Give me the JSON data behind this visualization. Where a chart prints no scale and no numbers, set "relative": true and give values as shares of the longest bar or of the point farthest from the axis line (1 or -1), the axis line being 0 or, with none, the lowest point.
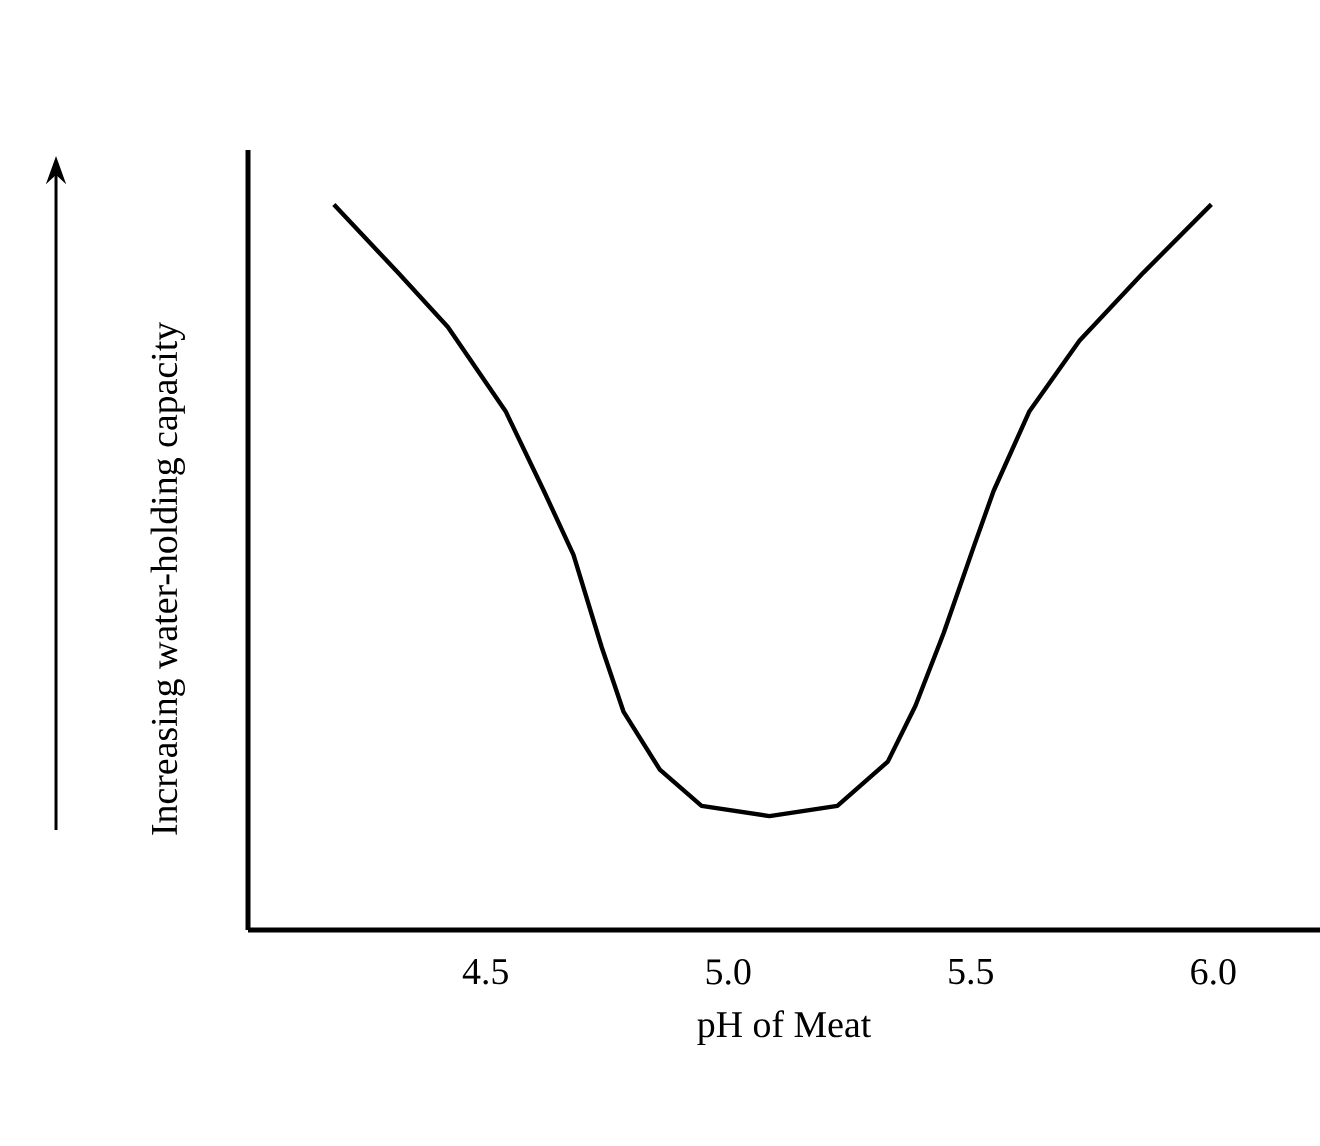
{
  "chart_data": {
    "type": "line",
    "xlabel": "pH of Meat",
    "ylabel": "Increasing water-holding capacity",
    "relative": true,
    "color": "#000000",
    "xlim": [
      4.01,
      6.22
    ],
    "xticks": [
      {
        "value": 4.5,
        "label": "4.5"
      },
      {
        "value": 5,
        "label": "5.0"
      },
      {
        "value": 5.5,
        "label": "5.5"
      },
      {
        "value": 6,
        "label": "6.0"
      }
    ],
    "x": [
      4.187,
      4.319,
      4.422,
      4.541,
      4.62,
      4.681,
      4.739,
      4.784,
      4.859,
      4.945,
      5.085,
      5.225,
      5.329,
      5.386,
      5.444,
      5.506,
      5.547,
      5.621,
      5.724,
      5.856,
      5.996
    ],
    "values": [
      1.0,
      0.906,
      0.831,
      0.715,
      0.605,
      0.517,
      0.39,
      0.301,
      0.221,
      0.171,
      0.157,
      0.171,
      0.232,
      0.309,
      0.409,
      0.528,
      0.605,
      0.715,
      0.812,
      0.906,
      1.0
    ]
  }
}
